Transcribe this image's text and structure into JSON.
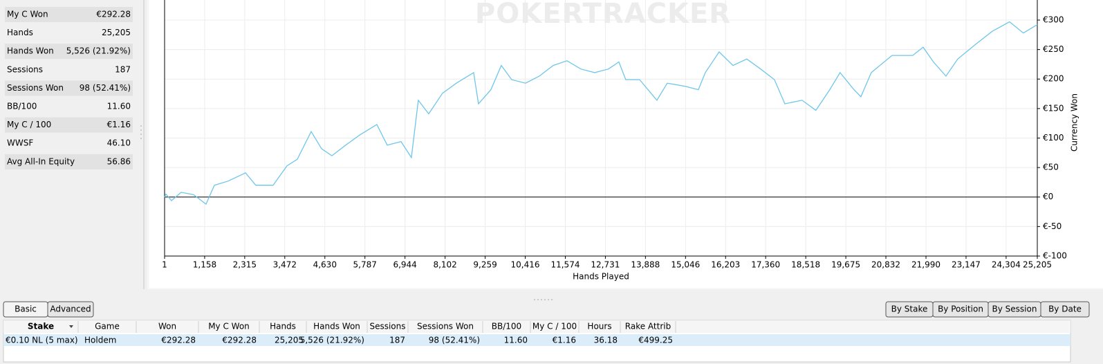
{
  "stats": [
    {
      "label": "My C Won",
      "value": "€292.28",
      "color": "#2a9a2a"
    },
    {
      "label": "Hands",
      "value": "25,205",
      "color": "#000000"
    },
    {
      "label": "Hands Won",
      "value": "5,526 (21.92%)",
      "color": "#000000"
    },
    {
      "label": "Sessions",
      "value": "187",
      "color": "#000000"
    },
    {
      "label": "Sessions Won",
      "value": "98 (52.41%)",
      "color": "#000000"
    },
    {
      "label": "BB/100",
      "value": "11.60",
      "color": "#2a9a2a"
    },
    {
      "label": "My C / 100",
      "value": "€1.16",
      "color": "#2a9a2a"
    },
    {
      "label": "WWSF",
      "value": "46.10",
      "color": "#000000"
    },
    {
      "label": "Avg All-In Equity",
      "value": "56.86",
      "color": "#000000"
    }
  ],
  "chart_data": {
    "type": "line",
    "watermark": "POKERTRACKER",
    "xlabel": "Hands Played",
    "ylabel": "Currency Won",
    "color": "#6ec6ea",
    "grid": true,
    "xlim": [
      1,
      25205
    ],
    "ylim": [
      -100,
      334
    ],
    "xticks": [
      1,
      {
        "value": 1158,
        "label": "1,158"
      },
      {
        "value": 2315,
        "label": "2,315"
      },
      {
        "value": 3472,
        "label": "3,472"
      },
      {
        "value": 4630,
        "label": "4,630"
      },
      {
        "value": 5787,
        "label": "5,787"
      },
      {
        "value": 6944,
        "label": "6,944"
      },
      {
        "value": 8102,
        "label": "8,102"
      },
      {
        "value": 9259,
        "label": "9,259"
      },
      {
        "value": 10416,
        "label": "10,416"
      },
      {
        "value": 11574,
        "label": "11,574"
      },
      {
        "value": 12731,
        "label": "12,731"
      },
      {
        "value": 13888,
        "label": "13,888"
      },
      {
        "value": 15046,
        "label": "15,046"
      },
      {
        "value": 16203,
        "label": "16,203"
      },
      {
        "value": 17360,
        "label": "17,360"
      },
      {
        "value": 18518,
        "label": "18,518"
      },
      {
        "value": 19675,
        "label": "19,675"
      },
      {
        "value": 20832,
        "label": "20,832"
      },
      {
        "value": 21990,
        "label": "21,990"
      },
      {
        "value": 23147,
        "label": "23,147"
      },
      {
        "value": 24304,
        "label": "24,304"
      },
      {
        "value": 25205,
        "label": "25,205"
      }
    ],
    "yticks": [
      {
        "value": 300,
        "label": "€300"
      },
      {
        "value": 250,
        "label": "€250"
      },
      {
        "value": 200,
        "label": "€200"
      },
      {
        "value": 150,
        "label": "€150"
      },
      {
        "value": 100,
        "label": "€100"
      },
      {
        "value": 50,
        "label": "€50"
      },
      {
        "value": 0,
        "label": "€0"
      },
      {
        "value": -50,
        "label": "€-50"
      },
      {
        "value": -100,
        "label": "€-100"
      }
    ],
    "x": [
      1,
      40,
      200,
      479,
      839,
      1198,
      1438,
      1837,
      2337,
      2636,
      3135,
      3535,
      3834,
      4234,
      4533,
      4833,
      5232,
      5632,
      6131,
      6430,
      6830,
      7129,
      7329,
      7629,
      8028,
      8427,
      8927,
      9066,
      9426,
      9725,
      10025,
      10424,
      10824,
      11223,
      11623,
      12022,
      12421,
      12821,
      13120,
      13320,
      13719,
      14219,
      14518,
      15017,
      15417,
      15617,
      16016,
      16415,
      16815,
      17214,
      17614,
      17913,
      18412,
      18811,
      19211,
      19510,
      19910,
      20110,
      20409,
      21008,
      21607,
      21907,
      22206,
      22566,
      22906,
      23405,
      23904,
      24403,
      24803,
      25205
    ],
    "values": [
      0,
      5,
      -6,
      8,
      4,
      -12,
      20,
      27,
      41,
      20,
      20,
      53,
      64,
      111,
      82,
      70,
      88,
      105,
      123,
      88,
      94,
      67,
      164,
      141,
      176,
      193,
      211,
      158,
      182,
      223,
      199,
      193,
      205,
      223,
      231,
      217,
      211,
      217,
      229,
      199,
      199,
      164,
      193,
      188,
      182,
      211,
      246,
      223,
      234,
      217,
      199,
      158,
      164,
      147,
      182,
      211,
      182,
      170,
      211,
      240,
      240,
      254,
      229,
      205,
      234,
      258,
      281,
      297,
      278,
      292.28
    ]
  },
  "tabs_left": [
    "Basic",
    "Advanced"
  ],
  "tabs_right": [
    "By Stake",
    "By Position",
    "By Session",
    "By Date"
  ],
  "table": {
    "headers": [
      "Stake",
      "Game",
      "Won",
      "My C Won",
      "Hands",
      "Hands Won",
      "Sessions",
      "Sessions Won",
      "BB/100",
      "My C / 100",
      "Hours",
      "Rake Attrib"
    ],
    "rows": [
      [
        "€0.10 NL (5 max)",
        "Holdem",
        "€292.28",
        "€292.28",
        "25,205",
        "5,526 (21.92%)",
        "187",
        "98 (52.41%)",
        "11.60",
        "€1.16",
        "36.18",
        "€499.25"
      ]
    ],
    "green_columns": [
      2,
      3,
      8,
      9
    ],
    "green": "#2a9a2a"
  }
}
